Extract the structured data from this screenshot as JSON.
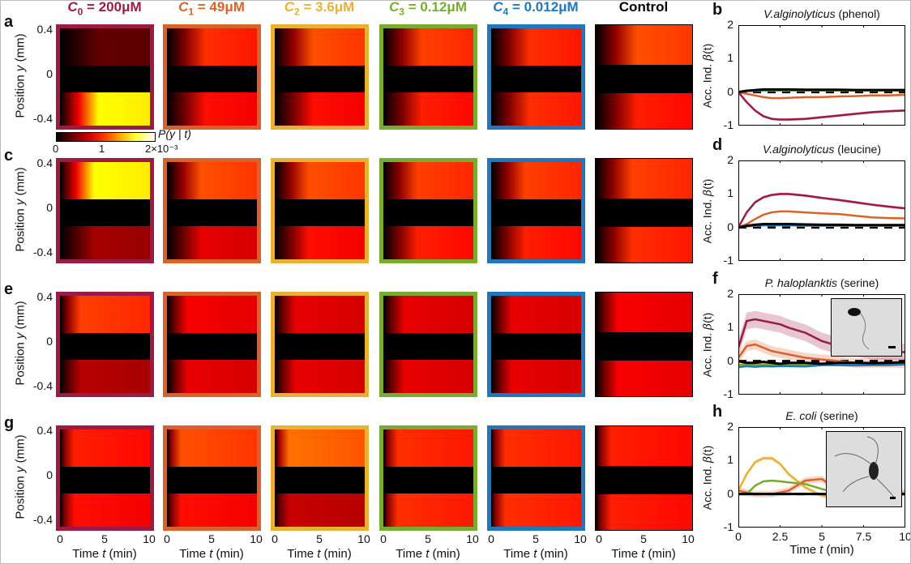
{
  "panel_letters": {
    "a": "a",
    "b": "b",
    "c": "c",
    "d": "d",
    "e": "e",
    "f": "f",
    "g": "g",
    "h": "h"
  },
  "columns": [
    {
      "sym": "C",
      "sub": "0",
      "rest": " = 200μM",
      "color": "#9b1b45"
    },
    {
      "sym": "C",
      "sub": "1",
      "rest": " = 49μM",
      "color": "#d9622b"
    },
    {
      "sym": "C",
      "sub": "2",
      "rest": " = 3.6μM",
      "color": "#e8b134"
    },
    {
      "sym": "C",
      "sub": "3",
      "rest": " = 0.12μM",
      "color": "#77ac30"
    },
    {
      "sym": "C",
      "sub": "4",
      "rest": " = 0.012μM",
      "color": "#1f78be"
    },
    {
      "sym": "",
      "sub": "",
      "rest": "Control",
      "color": "#000000"
    }
  ],
  "heatmap": {
    "ytick_labels": [
      "0.4",
      "0",
      "-0.4"
    ],
    "ylabel_pre": "Position ",
    "ylabel_var": "y",
    "ylabel_post": " (mm)",
    "xtick_labels": [
      "0",
      "5",
      "10"
    ],
    "xlabel_pre": "Time ",
    "xlabel_var": "t",
    "xlabel_post": " (min)",
    "colorbar": {
      "label": "P(y | t)",
      "ticks": [
        "0",
        "1",
        "2×10⁻³"
      ],
      "range": [
        0,
        0.002
      ]
    },
    "rows": [
      {
        "letter": "a",
        "left_fade": 0.35,
        "panels": [
          [
            0.3,
            1.6
          ],
          [
            0.9,
            0.8
          ],
          [
            1.0,
            0.8
          ],
          [
            0.95,
            0.85
          ],
          [
            0.9,
            0.9
          ],
          [
            1.0,
            0.85
          ]
        ]
      },
      {
        "letter": "c",
        "left_fade": 0.3,
        "panels": [
          [
            1.6,
            0.5
          ],
          [
            1.0,
            0.7
          ],
          [
            1.0,
            0.8
          ],
          [
            0.95,
            0.85
          ],
          [
            0.95,
            0.85
          ],
          [
            0.95,
            0.9
          ]
        ]
      },
      {
        "letter": "e",
        "left_fade": 0.15,
        "panels": [
          [
            0.95,
            0.55
          ],
          [
            0.75,
            0.7
          ],
          [
            0.7,
            0.7
          ],
          [
            0.7,
            0.7
          ],
          [
            0.7,
            0.7
          ],
          [
            0.75,
            0.75
          ]
        ]
      },
      {
        "letter": "g",
        "left_fade": 0.08,
        "panels": [
          [
            0.85,
            0.8
          ],
          [
            1.0,
            0.8
          ],
          [
            1.1,
            0.6
          ],
          [
            0.9,
            0.9
          ],
          [
            0.9,
            0.9
          ],
          [
            0.85,
            0.85
          ]
        ]
      }
    ]
  },
  "chart_data": [
    {
      "type": "line",
      "letter": "b",
      "title_species": "V.alginolyticus",
      "title_rest": " (phenol)",
      "ylabel_pre": "Acc. Ind. ",
      "ylabel_sym": "β",
      "ylabel_post": "(t)",
      "ylim": [
        -1,
        2
      ],
      "yticks": [
        "2",
        "1",
        "0",
        "-1"
      ],
      "xlim": [
        0,
        10
      ],
      "x": [
        0,
        0.5,
        1,
        1.5,
        2,
        2.5,
        3,
        4,
        5,
        6,
        7,
        8,
        9,
        10
      ],
      "series": [
        {
          "name": "C0",
          "color": "#9b1b45",
          "band": 0.04,
          "values": [
            0,
            -0.3,
            -0.55,
            -0.72,
            -0.8,
            -0.82,
            -0.82,
            -0.8,
            -0.75,
            -0.7,
            -0.65,
            -0.6,
            -0.57,
            -0.55
          ]
        },
        {
          "name": "C1",
          "color": "#d9622b",
          "band": 0.02,
          "values": [
            0,
            -0.05,
            -0.1,
            -0.15,
            -0.18,
            -0.18,
            -0.17,
            -0.15,
            -0.15,
            -0.13,
            -0.12,
            -0.1,
            -0.1,
            -0.08
          ]
        },
        {
          "name": "C2",
          "color": "#e8b134",
          "band": 0,
          "values": [
            0,
            0.03,
            0.04,
            0.05,
            0.05,
            0.05,
            0.05,
            0.05,
            0.05,
            0.05,
            0.05,
            0.05,
            0.05,
            0.05
          ]
        },
        {
          "name": "C3",
          "color": "#77ac30",
          "band": 0,
          "values": [
            0,
            0.03,
            0.04,
            0.05,
            0.05,
            0.05,
            0.05,
            0.05,
            0.05,
            0.05,
            0.05,
            0.05,
            0.05,
            0.05
          ]
        },
        {
          "name": "C4",
          "color": "#1f78be",
          "band": 0,
          "values": [
            0,
            0.03,
            0.05,
            0.06,
            0.06,
            0.06,
            0.06,
            0.06,
            0.06,
            0.06,
            0.06,
            0.06,
            0.06,
            0.06
          ]
        },
        {
          "name": "Control",
          "color": "#000000",
          "band": 0,
          "values": [
            0,
            0.04,
            0.06,
            0.08,
            0.08,
            0.08,
            0.08,
            0.07,
            0.07,
            0.07,
            0.06,
            0.06,
            0.06,
            0.06
          ]
        }
      ]
    },
    {
      "type": "line",
      "letter": "d",
      "title_species": "V.alginolyticus",
      "title_rest": " (leucine)",
      "ylabel_pre": "Acc. Ind. ",
      "ylabel_sym": "β",
      "ylabel_post": "(t)",
      "ylim": [
        -1,
        2
      ],
      "yticks": [
        "2",
        "1",
        "0",
        "-1"
      ],
      "xlim": [
        0,
        10
      ],
      "x": [
        0,
        0.5,
        1,
        1.5,
        2,
        2.5,
        3,
        4,
        5,
        6,
        7,
        8,
        9,
        10
      ],
      "series": [
        {
          "name": "C0",
          "color": "#9b1b45",
          "band": 0.04,
          "values": [
            0,
            0.45,
            0.75,
            0.9,
            0.97,
            1.0,
            1.0,
            0.95,
            0.88,
            0.82,
            0.75,
            0.68,
            0.62,
            0.57
          ]
        },
        {
          "name": "C1",
          "color": "#d9622b",
          "band": 0.02,
          "values": [
            0,
            0.1,
            0.25,
            0.38,
            0.45,
            0.48,
            0.48,
            0.45,
            0.42,
            0.4,
            0.35,
            0.3,
            0.28,
            0.27
          ]
        },
        {
          "name": "C2",
          "color": "#e8b134",
          "band": 0,
          "values": [
            0,
            0.03,
            0.05,
            0.06,
            0.06,
            0.06,
            0.06,
            0.05,
            0.05,
            0.05,
            0.05,
            0.05,
            0.05,
            0.05
          ]
        },
        {
          "name": "C3",
          "color": "#77ac30",
          "band": 0,
          "values": [
            0,
            0.03,
            0.05,
            0.06,
            0.06,
            0.06,
            0.06,
            0.05,
            0.05,
            0.05,
            0.05,
            0.05,
            0.05,
            0.05
          ]
        },
        {
          "name": "C4",
          "color": "#1f78be",
          "band": 0,
          "values": [
            0,
            0.04,
            0.06,
            0.07,
            0.07,
            0.07,
            0.07,
            0.06,
            0.06,
            0.06,
            0.06,
            0.06,
            0.06,
            0.06
          ]
        },
        {
          "name": "Control",
          "color": "#000000",
          "band": 0,
          "values": [
            0,
            0.05,
            0.08,
            0.1,
            0.1,
            0.1,
            0.1,
            0.09,
            0.08,
            0.08,
            0.07,
            0.07,
            0.07,
            0.07
          ]
        }
      ]
    },
    {
      "type": "line",
      "letter": "f",
      "title_species": "P. haloplanktis",
      "title_rest": " (serine)",
      "ylabel_pre": "Acc. Ind. ",
      "ylabel_sym": "β",
      "ylabel_post": "(t)",
      "ylim": [
        -1,
        2
      ],
      "yticks": [
        "2",
        "1",
        "0",
        "-1"
      ],
      "xlim": [
        0,
        10
      ],
      "x": [
        0,
        0.5,
        1,
        1.5,
        2,
        2.5,
        3,
        4,
        5,
        6,
        7,
        8,
        9,
        10
      ],
      "series": [
        {
          "name": "C0",
          "color": "#9b1b45",
          "band": 0.25,
          "values": [
            0.4,
            1.2,
            1.25,
            1.2,
            1.15,
            1.1,
            1.0,
            0.85,
            0.6,
            0.45,
            0.4,
            0.3,
            0.28,
            0.27
          ]
        },
        {
          "name": "C1",
          "color": "#d9622b",
          "band": 0.15,
          "values": [
            0.1,
            0.45,
            0.5,
            0.4,
            0.3,
            0.25,
            0.2,
            0.1,
            0.05,
            0,
            -0.05,
            -0.05,
            -0.05,
            -0.05
          ]
        },
        {
          "name": "C2",
          "color": "#e8b134",
          "band": 0,
          "values": [
            -0.1,
            -0.1,
            -0.12,
            -0.1,
            -0.1,
            -0.12,
            -0.1,
            -0.1,
            -0.1,
            -0.08,
            -0.1,
            -0.1,
            -0.1,
            -0.08
          ]
        },
        {
          "name": "C3",
          "color": "#77ac30",
          "band": 0,
          "values": [
            -0.12,
            -0.1,
            -0.12,
            -0.1,
            -0.12,
            -0.12,
            -0.1,
            -0.12,
            -0.1,
            -0.1,
            -0.12,
            -0.1,
            -0.1,
            -0.08
          ]
        },
        {
          "name": "C4",
          "color": "#1f78be",
          "band": 0,
          "values": [
            -0.18,
            -0.15,
            -0.17,
            -0.15,
            -0.16,
            -0.15,
            -0.15,
            -0.16,
            -0.12,
            -0.12,
            -0.13,
            -0.12,
            -0.12,
            -0.1
          ]
        },
        {
          "name": "Control",
          "color": "#000000",
          "band": 0,
          "values": [
            0,
            -0.05,
            -0.05,
            -0.02,
            -0.05,
            -0.08,
            -0.05,
            -0.05,
            -0.08,
            -0.05,
            -0.05,
            -0.06,
            -0.05,
            -0.03
          ]
        }
      ],
      "inset": "cell-micrograph"
    },
    {
      "type": "line",
      "letter": "h",
      "title_species": "E. coli",
      "title_rest": " (serine)",
      "ylabel_pre": "Acc. Ind. ",
      "ylabel_sym": "β",
      "ylabel_post": "(t)",
      "ylim": [
        -1,
        2
      ],
      "yticks": [
        "2",
        "1",
        "0",
        "-1"
      ],
      "xlim": [
        0,
        10
      ],
      "xticks": [
        "0",
        "2.5",
        "5",
        "7.5",
        "10"
      ],
      "xlabel_pre": "Time ",
      "xlabel_var": "t",
      "xlabel_post": " (min)",
      "x": [
        0,
        0.5,
        1,
        1.5,
        2,
        2.5,
        3,
        4,
        5,
        6,
        7,
        8,
        9,
        10
      ],
      "series": [
        {
          "name": "C1",
          "color": "#d9622b",
          "band": 0.1,
          "values": [
            0.1,
            0.05,
            0,
            0,
            0,
            0.05,
            0.1,
            0.4,
            0.45,
            0.1,
            -0.05,
            -0.1,
            0,
            0.05
          ]
        },
        {
          "name": "C2",
          "color": "#e8b134",
          "band": 0.06,
          "values": [
            0.1,
            0.6,
            0.95,
            1.07,
            1.07,
            0.9,
            0.6,
            0.2,
            -0.05,
            -0.1,
            -0.1,
            -0.05,
            0,
            0.05
          ]
        },
        {
          "name": "C3",
          "color": "#77ac30",
          "band": 0.03,
          "values": [
            0,
            0,
            0.25,
            0.38,
            0.4,
            0.38,
            0.35,
            0.3,
            0.15,
            0.02,
            0,
            0,
            0,
            0
          ]
        },
        {
          "name": "C4",
          "color": "#1f78be",
          "band": 0,
          "values": [
            0,
            0,
            0,
            0,
            0,
            0,
            0,
            0,
            0,
            0,
            0,
            0,
            0,
            0
          ]
        },
        {
          "name": "Control",
          "color": "#000000",
          "band": 0,
          "values": [
            0,
            0,
            0,
            0,
            0,
            0,
            0,
            0,
            0,
            0,
            0,
            0,
            0,
            0
          ]
        }
      ],
      "inset": "cell-micrograph"
    }
  ]
}
